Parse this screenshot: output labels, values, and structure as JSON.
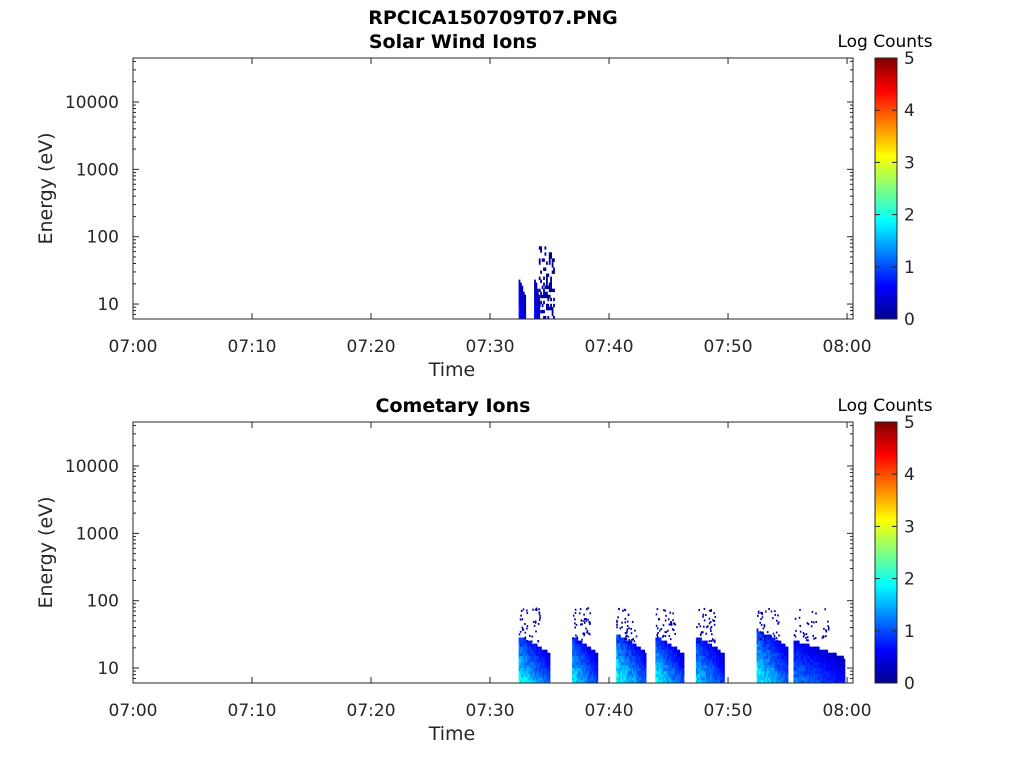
{
  "figure_title": "RPCICA150709T07.PNG",
  "chart_data": [
    {
      "type": "heatmap",
      "title": "Solar Wind Ions",
      "xlabel": "Time",
      "ylabel": "Energy (eV)",
      "x_ticks": [
        "07:00",
        "07:10",
        "07:20",
        "07:30",
        "07:40",
        "07:50",
        "08:00"
      ],
      "x_range_minutes": [
        0,
        60.5
      ],
      "y_scale": "log",
      "y_ticks": [
        "10",
        "100",
        "1000",
        "10000"
      ],
      "y_range_eV": [
        6,
        45000
      ],
      "colorbar": {
        "label": "Log Counts",
        "range": [
          0,
          5
        ],
        "ticks": [
          "0",
          "1",
          "2",
          "3",
          "4",
          "5"
        ],
        "colormap": "jet"
      },
      "bursts": [
        {
          "t_start_min": 32.4,
          "t_end_min": 32.9,
          "e_min_eV": 6,
          "e_max_eV": 22,
          "peak_log_counts": 0.9
        },
        {
          "t_start_min": 33.7,
          "t_end_min": 34.1,
          "e_min_eV": 6,
          "e_max_eV": 22,
          "peak_log_counts": 0.8
        },
        {
          "t_start_min": 34.1,
          "t_end_min": 35.4,
          "e_min_eV": 6,
          "e_max_eV": 80,
          "peak_log_counts": 0.3
        }
      ]
    },
    {
      "type": "heatmap",
      "title": "Cometary Ions",
      "xlabel": "Time",
      "ylabel": "Energy (eV)",
      "x_ticks": [
        "07:00",
        "07:10",
        "07:20",
        "07:30",
        "07:40",
        "07:50",
        "08:00"
      ],
      "x_range_minutes": [
        0,
        60.5
      ],
      "y_scale": "log",
      "y_ticks": [
        "10",
        "100",
        "1000",
        "10000"
      ],
      "y_range_eV": [
        6,
        45000
      ],
      "colorbar": {
        "label": "Log Counts",
        "range": [
          0,
          5
        ],
        "ticks": [
          "0",
          "1",
          "2",
          "3",
          "4",
          "5"
        ],
        "colormap": "jet"
      },
      "bursts": [
        {
          "t_start_min": 32.4,
          "t_end_min": 35.0,
          "e_min_eV": 6,
          "e_max_eV": 28,
          "peak_log_counts": 2.3
        },
        {
          "t_start_min": 36.9,
          "t_end_min": 39.0,
          "e_min_eV": 6,
          "e_max_eV": 28,
          "peak_log_counts": 2.1
        },
        {
          "t_start_min": 40.6,
          "t_end_min": 43.0,
          "e_min_eV": 6,
          "e_max_eV": 30,
          "peak_log_counts": 2.4
        },
        {
          "t_start_min": 43.9,
          "t_end_min": 46.2,
          "e_min_eV": 6,
          "e_max_eV": 28,
          "peak_log_counts": 2.2
        },
        {
          "t_start_min": 47.3,
          "t_end_min": 49.6,
          "e_min_eV": 6,
          "e_max_eV": 28,
          "peak_log_counts": 2.0
        },
        {
          "t_start_min": 52.4,
          "t_end_min": 55.0,
          "e_min_eV": 6,
          "e_max_eV": 35,
          "peak_log_counts": 2.3
        },
        {
          "t_start_min": 55.5,
          "t_end_min": 59.8,
          "e_min_eV": 6,
          "e_max_eV": 24,
          "peak_log_counts": 1.5
        }
      ],
      "scatter_top_eV": 80
    }
  ]
}
